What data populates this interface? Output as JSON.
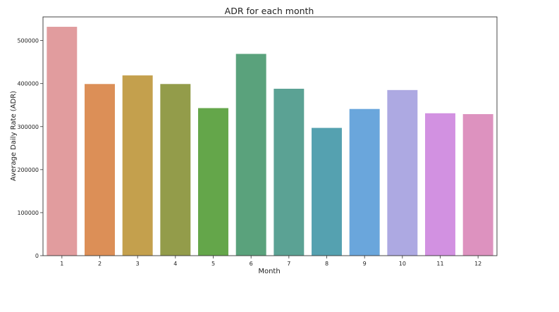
{
  "chart_data": {
    "type": "bar",
    "title": "ADR for each month",
    "xlabel": "Month",
    "ylabel": "Average Daily Rate (ADR)",
    "categories": [
      "1",
      "2",
      "3",
      "4",
      "5",
      "6",
      "7",
      "8",
      "9",
      "10",
      "11",
      "12"
    ],
    "values": [
      532000,
      399000,
      419000,
      399000,
      343000,
      469000,
      388000,
      297000,
      341000,
      385000,
      331000,
      329000
    ],
    "colors": [
      "#e19c9e",
      "#dc8f57",
      "#c4a04d",
      "#939c4a",
      "#64a64a",
      "#5aa27c",
      "#5ba294",
      "#55a1b0",
      "#6aa6dc",
      "#ada9e2",
      "#d291e1",
      "#dd92bf"
    ],
    "ylim": [
      0,
      555000
    ],
    "yticks": [
      0,
      100000,
      200000,
      300000,
      400000,
      500000
    ],
    "ytick_labels": [
      "0",
      "100000",
      "200000",
      "300000",
      "400000",
      "500000"
    ],
    "grid": false,
    "legend": false
  }
}
